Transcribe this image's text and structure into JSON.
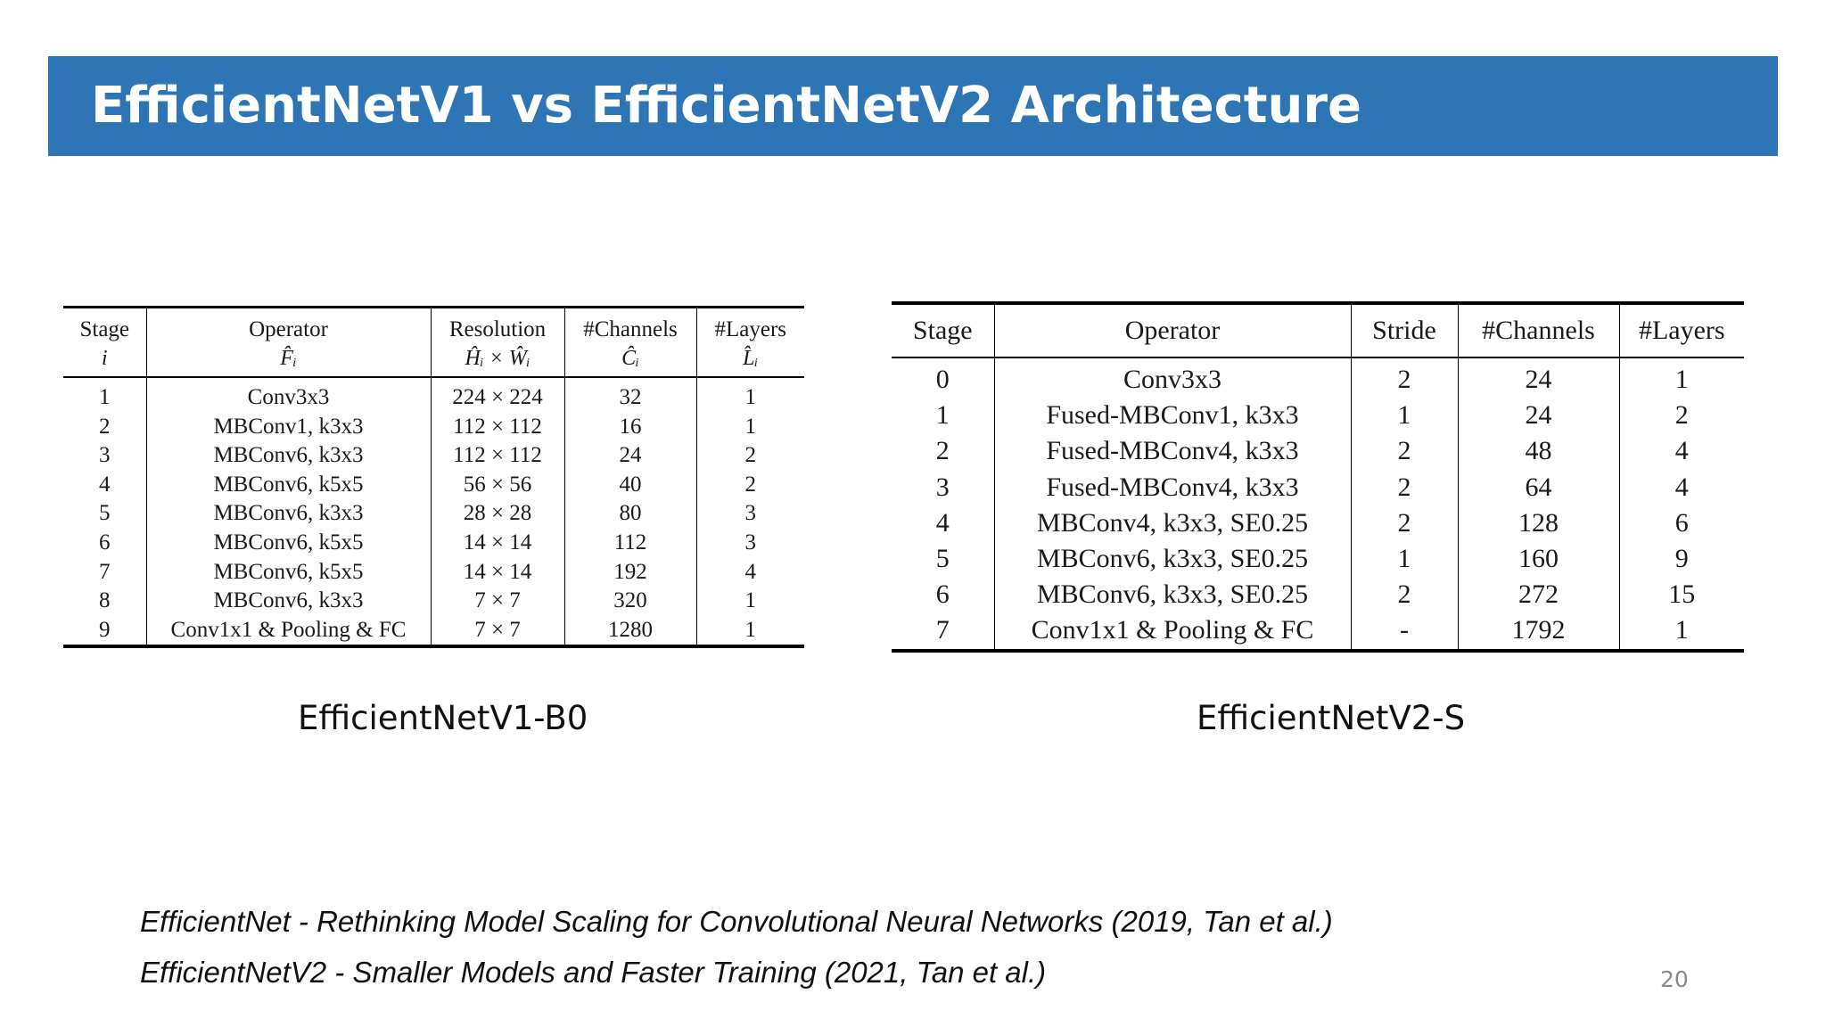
{
  "slide": {
    "title": "EfficientNetV1 vs EfficientNetV2 Architecture",
    "page_number": "20"
  },
  "table_v1": {
    "caption": "EfficientNetV1-B0",
    "headers": [
      {
        "top": "Stage",
        "sub": "i"
      },
      {
        "top": "Operator",
        "sub": "F̂ᵢ"
      },
      {
        "top": "Resolution",
        "sub": "Ĥᵢ × Ŵᵢ"
      },
      {
        "top": "#Channels",
        "sub": "Ĉᵢ"
      },
      {
        "top": "#Layers",
        "sub": "L̂ᵢ"
      }
    ],
    "rows": [
      [
        "1",
        "Conv3x3",
        "224 × 224",
        "32",
        "1"
      ],
      [
        "2",
        "MBConv1, k3x3",
        "112 × 112",
        "16",
        "1"
      ],
      [
        "3",
        "MBConv6, k3x3",
        "112 × 112",
        "24",
        "2"
      ],
      [
        "4",
        "MBConv6, k5x5",
        "56 × 56",
        "40",
        "2"
      ],
      [
        "5",
        "MBConv6, k3x3",
        "28 × 28",
        "80",
        "3"
      ],
      [
        "6",
        "MBConv6, k5x5",
        "14 × 14",
        "112",
        "3"
      ],
      [
        "7",
        "MBConv6, k5x5",
        "14 × 14",
        "192",
        "4"
      ],
      [
        "8",
        "MBConv6, k3x3",
        "7 × 7",
        "320",
        "1"
      ],
      [
        "9",
        "Conv1x1 & Pooling & FC",
        "7 × 7",
        "1280",
        "1"
      ]
    ]
  },
  "table_v2": {
    "caption": "EfficientNetV2-S",
    "headers": [
      "Stage",
      "Operator",
      "Stride",
      "#Channels",
      "#Layers"
    ],
    "rows": [
      [
        "0",
        "Conv3x3",
        "2",
        "24",
        "1"
      ],
      [
        "1",
        "Fused-MBConv1, k3x3",
        "1",
        "24",
        "2"
      ],
      [
        "2",
        "Fused-MBConv4, k3x3",
        "2",
        "48",
        "4"
      ],
      [
        "3",
        "Fused-MBConv4, k3x3",
        "2",
        "64",
        "4"
      ],
      [
        "4",
        "MBConv4, k3x3, SE0.25",
        "2",
        "128",
        "6"
      ],
      [
        "5",
        "MBConv6, k3x3, SE0.25",
        "1",
        "160",
        "9"
      ],
      [
        "6",
        "MBConv6, k3x3, SE0.25",
        "2",
        "272",
        "15"
      ],
      [
        "7",
        "Conv1x1 & Pooling & FC",
        "-",
        "1792",
        "1"
      ]
    ]
  },
  "references": [
    "EfficientNet - Rethinking Model Scaling for Convolutional Neural Networks (2019, Tan et al.)",
    "EfficientNetV2 - Smaller Models and Faster Training (2021, Tan et al.)"
  ]
}
